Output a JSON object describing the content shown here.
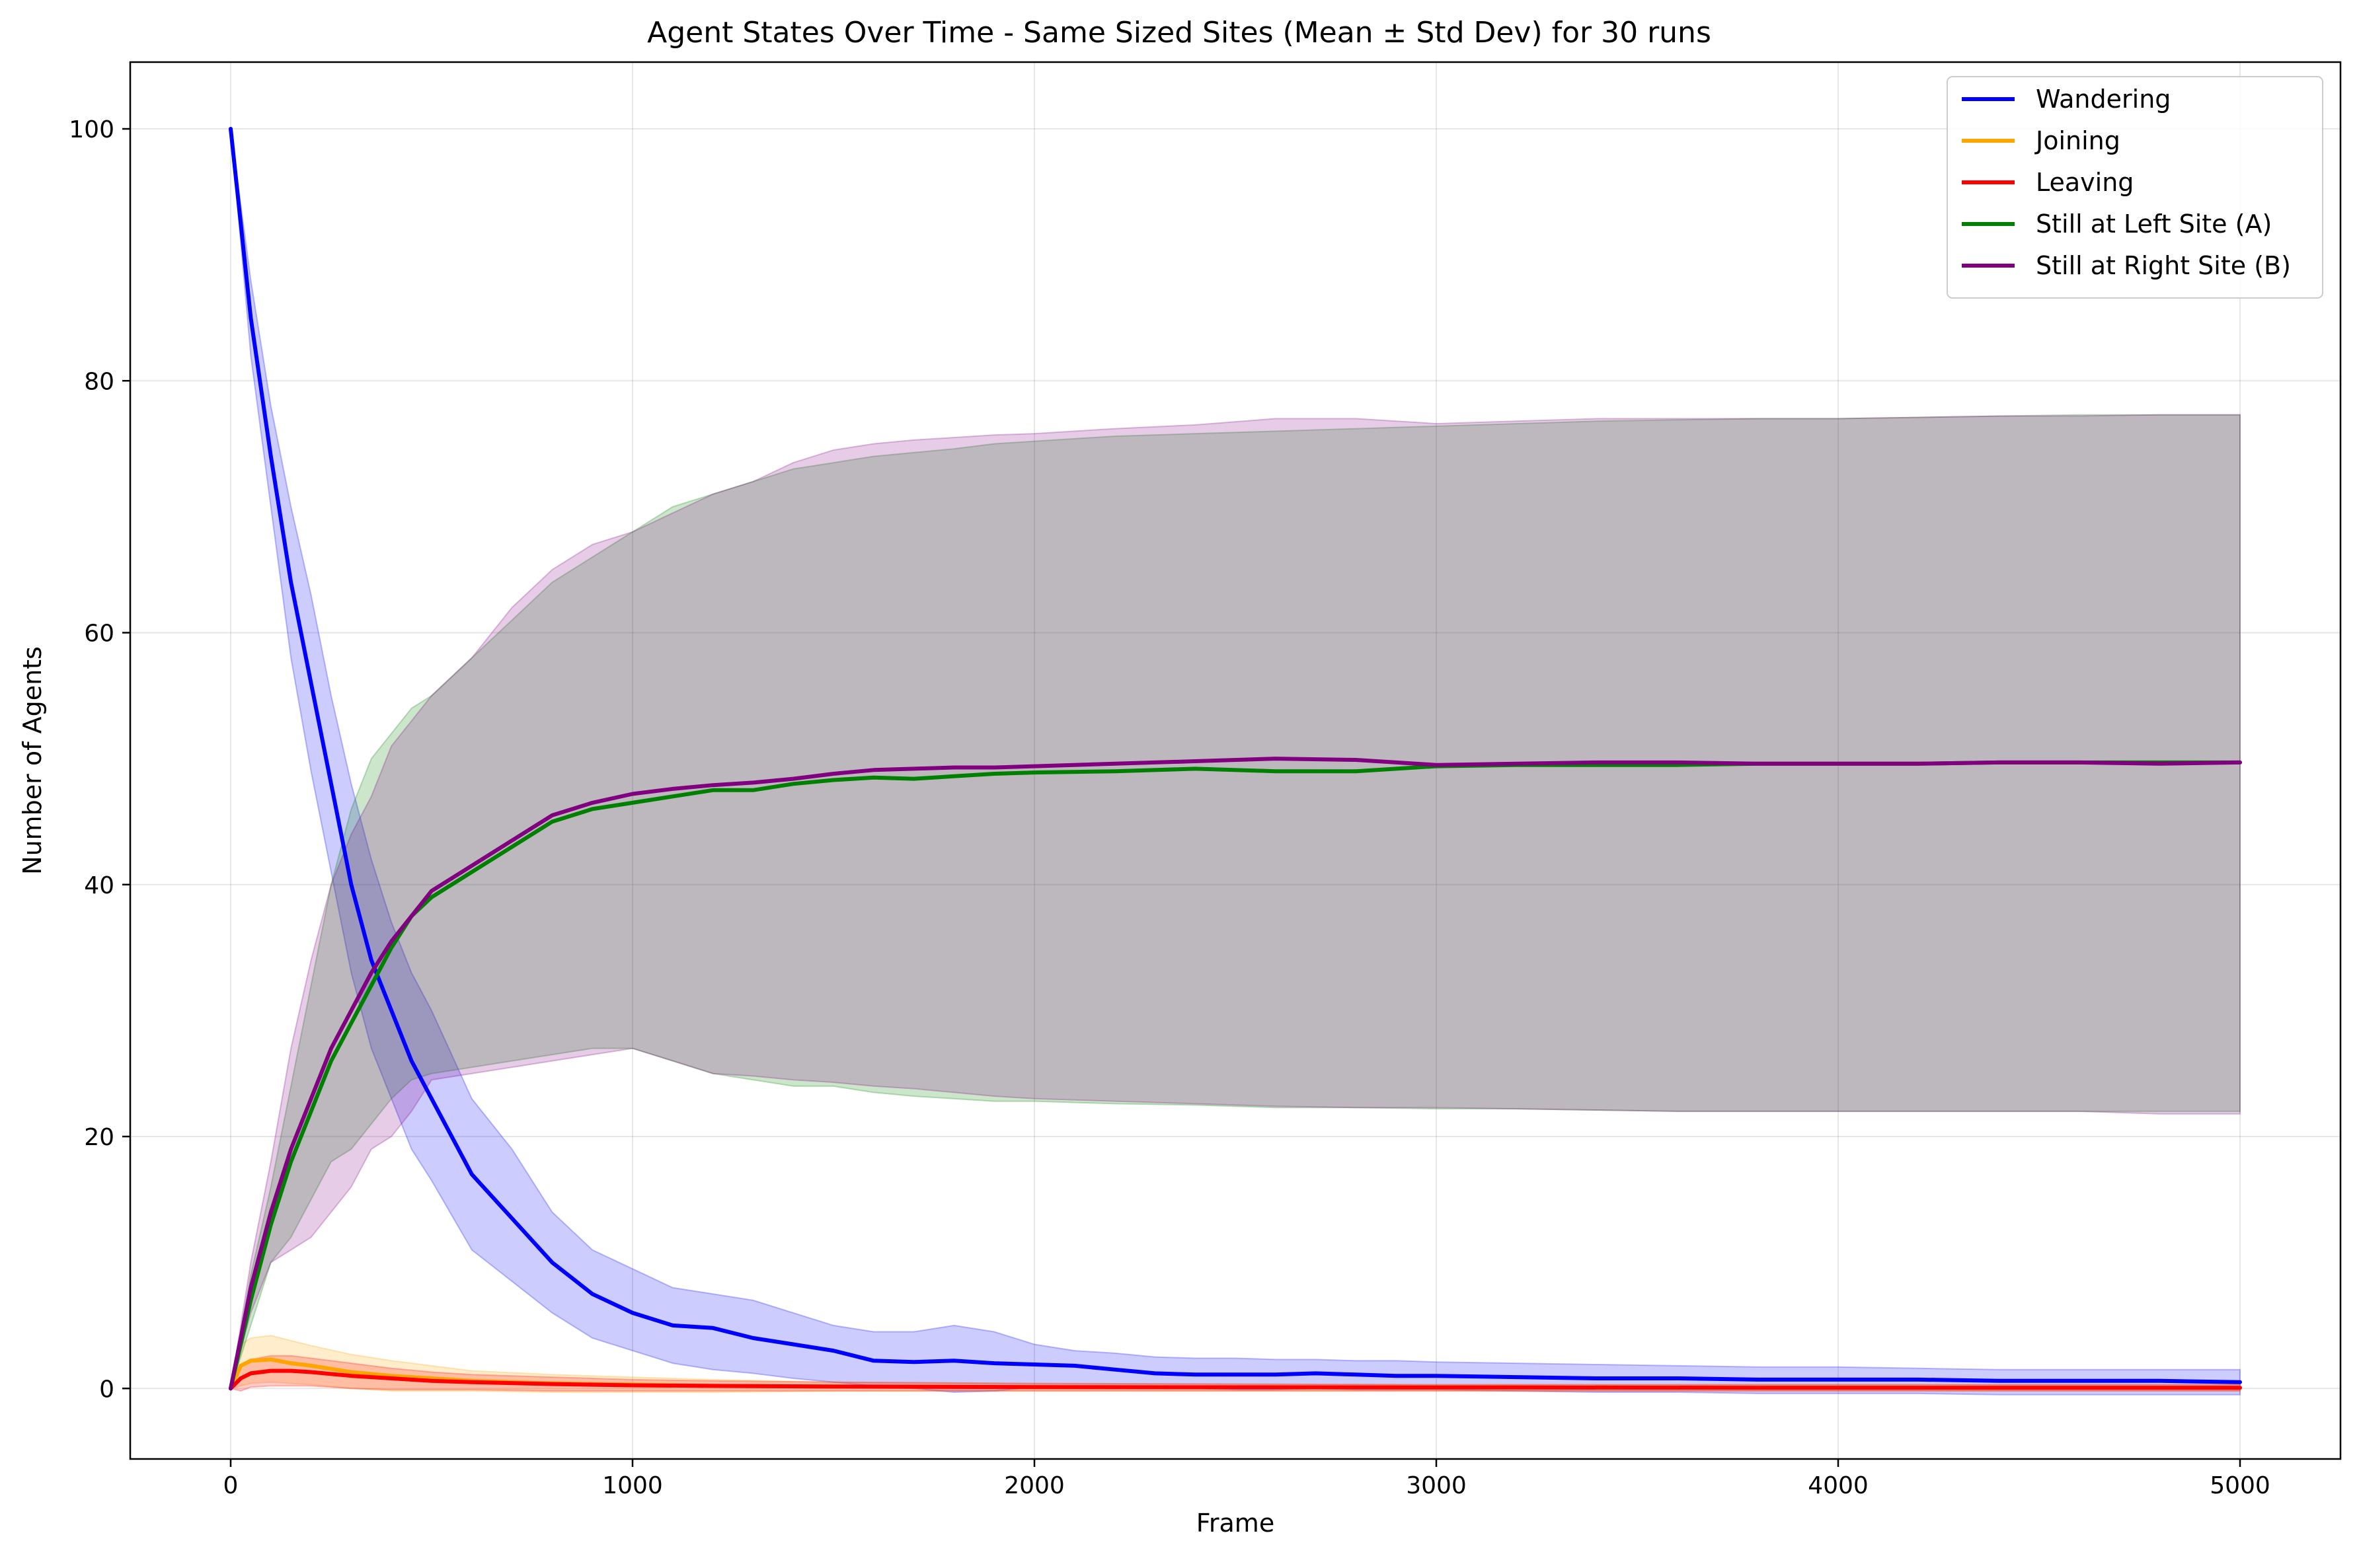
{
  "chart_data": {
    "type": "line",
    "title": "Agent States Over Time - Same Sized Sites (Mean ± Std Dev) for 30 runs",
    "xlabel": "Frame",
    "ylabel": "Number of Agents",
    "xlim": [
      -250,
      5250
    ],
    "ylim": [
      -5.6,
      105.3
    ],
    "xticks": [
      0,
      1000,
      2000,
      3000,
      4000,
      5000
    ],
    "yticks": [
      0,
      20,
      40,
      60,
      80,
      100
    ],
    "grid": true,
    "legend_position": "top-right",
    "colors": {
      "wandering": "#0000ff",
      "joining": "#ffa500",
      "leaving": "#ff0000",
      "left_site": "#008000",
      "right_site": "#800080"
    },
    "series": [
      {
        "name": "Wandering",
        "color": "#0000ff",
        "x": [
          0,
          50,
          100,
          150,
          200,
          250,
          300,
          350,
          400,
          450,
          500,
          600,
          700,
          800,
          900,
          1000,
          1100,
          1200,
          1300,
          1400,
          1500,
          1600,
          1700,
          1800,
          1900,
          2000,
          2100,
          2200,
          2300,
          2400,
          2500,
          2600,
          2700,
          2800,
          2900,
          3000,
          3200,
          3400,
          3600,
          3800,
          4000,
          4200,
          4400,
          4600,
          4800,
          5000
        ],
        "mean": [
          100,
          85,
          74,
          64,
          56,
          48,
          40,
          34,
          30,
          26,
          23,
          17,
          13.5,
          10,
          7.5,
          6,
          5,
          4.8,
          4,
          3.5,
          3,
          2.2,
          2.1,
          2.2,
          2,
          1.9,
          1.8,
          1.5,
          1.2,
          1.1,
          1.1,
          1.1,
          1.2,
          1.1,
          1.0,
          1.0,
          0.9,
          0.8,
          0.8,
          0.7,
          0.7,
          0.7,
          0.6,
          0.6,
          0.6,
          0.5
        ],
        "upper": [
          100,
          88,
          78,
          70,
          63,
          55,
          48,
          42,
          37,
          33,
          30,
          23,
          19,
          14,
          11,
          9.5,
          8,
          7.5,
          7,
          6,
          5,
          4.5,
          4.5,
          5,
          4.5,
          3.5,
          3,
          2.8,
          2.5,
          2.4,
          2.4,
          2.3,
          2.3,
          2.2,
          2.2,
          2.1,
          2.0,
          1.9,
          1.8,
          1.7,
          1.7,
          1.6,
          1.5,
          1.5,
          1.5,
          1.5
        ],
        "lower": [
          100,
          82,
          70,
          58,
          49,
          41,
          33,
          27,
          23,
          19,
          16.5,
          11,
          8.5,
          6,
          4,
          3,
          2,
          1.5,
          1.2,
          0.8,
          0.5,
          0.2,
          0.0,
          -0.3,
          -0.2,
          0.1,
          0.2,
          0.2,
          0.1,
          0.0,
          -0.1,
          -0.1,
          0.0,
          -0.1,
          -0.1,
          -0.1,
          -0.2,
          -0.3,
          -0.3,
          -0.4,
          -0.4,
          -0.4,
          -0.5,
          -0.5,
          -0.5,
          -0.5
        ]
      },
      {
        "name": "Joining",
        "color": "#ffa500",
        "x": [
          0,
          25,
          50,
          100,
          150,
          200,
          300,
          400,
          500,
          600,
          800,
          1000,
          1200,
          1500,
          2000,
          3000,
          4000,
          5000
        ],
        "mean": [
          0,
          1.8,
          2.2,
          2.3,
          2.0,
          1.8,
          1.3,
          1.0,
          0.8,
          0.6,
          0.4,
          0.3,
          0.2,
          0.15,
          0.1,
          0.08,
          0.05,
          0.05
        ],
        "upper": [
          0,
          3.5,
          4.0,
          4.2,
          3.8,
          3.4,
          2.7,
          2.2,
          1.8,
          1.4,
          1.1,
          0.9,
          0.7,
          0.5,
          0.4,
          0.3,
          0.3,
          0.3
        ],
        "lower": [
          0,
          0.2,
          0.4,
          0.5,
          0.4,
          0.3,
          0.0,
          -0.2,
          -0.2,
          -0.2,
          -0.3,
          -0.3,
          -0.3,
          -0.2,
          -0.2,
          -0.2,
          -0.2,
          -0.2
        ]
      },
      {
        "name": "Leaving",
        "color": "#ff0000",
        "x": [
          0,
          25,
          50,
          100,
          150,
          200,
          300,
          400,
          500,
          600,
          800,
          1000,
          1200,
          1500,
          2000,
          3000,
          4000,
          5000
        ],
        "mean": [
          0,
          0.8,
          1.2,
          1.4,
          1.4,
          1.3,
          1.0,
          0.8,
          0.6,
          0.5,
          0.35,
          0.25,
          0.2,
          0.15,
          0.1,
          0.08,
          0.05,
          0.05
        ],
        "upper": [
          0,
          1.8,
          2.3,
          2.6,
          2.6,
          2.4,
          2.0,
          1.6,
          1.3,
          1.1,
          0.9,
          0.7,
          0.6,
          0.5,
          0.4,
          0.3,
          0.3,
          0.3
        ],
        "lower": [
          0,
          -0.2,
          0.1,
          0.2,
          0.2,
          0.2,
          0.0,
          -0.1,
          -0.1,
          -0.1,
          -0.2,
          -0.2,
          -0.2,
          -0.2,
          -0.2,
          -0.2,
          -0.2,
          -0.2
        ]
      },
      {
        "name": "Still at Left Site (A)",
        "color": "#008000",
        "x": [
          0,
          50,
          100,
          150,
          200,
          250,
          300,
          350,
          400,
          450,
          500,
          600,
          700,
          800,
          900,
          1000,
          1100,
          1200,
          1300,
          1400,
          1500,
          1600,
          1700,
          1800,
          1900,
          2000,
          2200,
          2400,
          2600,
          2800,
          3000,
          3200,
          3400,
          3600,
          3800,
          4000,
          4200,
          4400,
          4600,
          4800,
          5000
        ],
        "mean": [
          0,
          7,
          13,
          18,
          22,
          26,
          29,
          32,
          35,
          37.5,
          39,
          41,
          43,
          45,
          46,
          46.5,
          47,
          47.5,
          47.5,
          48,
          48.3,
          48.5,
          48.4,
          48.6,
          48.8,
          48.9,
          49,
          49.2,
          49,
          49,
          49.4,
          49.5,
          49.5,
          49.5,
          49.6,
          49.6,
          49.6,
          49.7,
          49.7,
          49.7,
          49.7
        ],
        "upper": [
          0,
          9,
          16,
          24,
          32,
          40,
          46,
          50,
          52,
          54,
          55,
          58,
          61,
          64,
          66,
          68,
          70,
          71,
          72,
          73,
          73.5,
          74,
          74.3,
          74.6,
          75,
          75.2,
          75.6,
          75.8,
          76,
          76.2,
          76.4,
          76.6,
          76.8,
          76.9,
          77,
          77,
          77.1,
          77.2,
          77.3,
          77.3,
          77.3
        ],
        "lower": [
          0,
          5,
          10,
          12,
          15,
          18,
          19,
          21,
          23,
          24.5,
          25,
          25.5,
          26,
          26.5,
          27,
          27,
          26,
          25,
          24.5,
          24,
          24,
          23.5,
          23.2,
          23,
          22.8,
          22.8,
          22.6,
          22.5,
          22.3,
          22.3,
          22.2,
          22.2,
          22.1,
          22.0,
          22.0,
          22.0,
          22.0,
          22.0,
          22.0,
          22.0,
          22.0
        ]
      },
      {
        "name": "Still at Right Site (B)",
        "color": "#800080",
        "x": [
          0,
          50,
          100,
          150,
          200,
          250,
          300,
          350,
          400,
          450,
          500,
          600,
          700,
          800,
          900,
          1000,
          1100,
          1200,
          1300,
          1400,
          1500,
          1600,
          1700,
          1800,
          1900,
          2000,
          2200,
          2400,
          2600,
          2800,
          3000,
          3200,
          3400,
          3600,
          3800,
          4000,
          4200,
          4400,
          4600,
          4800,
          5000
        ],
        "mean": [
          0,
          8,
          14,
          19,
          23,
          27,
          30,
          33,
          35.5,
          37.5,
          39.5,
          41.5,
          43.5,
          45.5,
          46.5,
          47.2,
          47.6,
          47.9,
          48.1,
          48.4,
          48.8,
          49.1,
          49.2,
          49.3,
          49.3,
          49.4,
          49.6,
          49.8,
          50,
          49.9,
          49.5,
          49.6,
          49.7,
          49.7,
          49.6,
          49.6,
          49.6,
          49.7,
          49.7,
          49.6,
          49.7
        ],
        "upper": [
          0,
          10,
          18,
          27,
          34,
          40,
          44,
          47,
          51,
          53,
          55,
          58,
          62,
          65,
          67,
          68,
          69.5,
          71,
          72,
          73.5,
          74.5,
          75,
          75.3,
          75.5,
          75.7,
          75.8,
          76.2,
          76.5,
          77,
          77,
          76.6,
          76.8,
          77,
          77,
          77,
          77,
          77.1,
          77.2,
          77.2,
          77.3,
          77.3
        ],
        "lower": [
          0,
          6,
          10,
          11,
          12,
          14,
          16,
          19,
          20,
          22,
          24.5,
          25,
          25.5,
          26,
          26.5,
          27,
          26,
          25,
          24.8,
          24.5,
          24.3,
          24,
          23.8,
          23.5,
          23.2,
          23,
          22.8,
          22.6,
          22.4,
          22.3,
          22.3,
          22.2,
          22.1,
          22.0,
          22.0,
          22.0,
          22.0,
          22.0,
          22.0,
          21.8,
          21.8
        ]
      }
    ]
  }
}
